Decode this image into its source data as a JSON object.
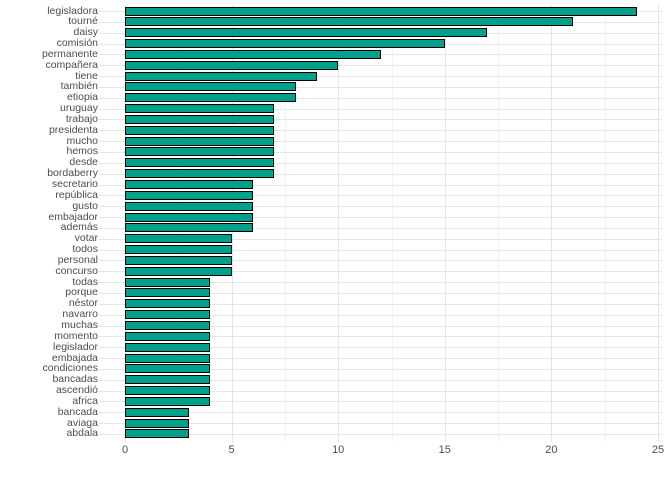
{
  "chart_data": {
    "type": "bar",
    "orientation": "horizontal",
    "title": "",
    "xlabel": "",
    "ylabel": "",
    "categories": [
      "legisladora",
      "tourné",
      "daisy",
      "comisión",
      "permanente",
      "compañera",
      "tiene",
      "también",
      "etiopia",
      "uruguay",
      "trabajo",
      "presidenta",
      "mucho",
      "hemos",
      "desde",
      "bordaberry",
      "secretario",
      "república",
      "gusto",
      "embajador",
      "además",
      "votar",
      "todos",
      "personal",
      "concurso",
      "todas",
      "porque",
      "néstor",
      "navarro",
      "muchas",
      "momento",
      "legislador",
      "embajada",
      "condiciones",
      "bancadas",
      "ascendió",
      "africa",
      "bancada",
      "aviaga",
      "abdala"
    ],
    "values": [
      24,
      21,
      17,
      15,
      12,
      10,
      9,
      8,
      8,
      7,
      7,
      7,
      7,
      7,
      7,
      7,
      6,
      6,
      6,
      6,
      6,
      5,
      5,
      5,
      5,
      4,
      4,
      4,
      4,
      4,
      4,
      4,
      4,
      4,
      4,
      4,
      4,
      3,
      3,
      3
    ],
    "xlim": [
      0,
      25
    ],
    "x_ticks": [
      "0",
      "5",
      "10",
      "15",
      "20",
      "25"
    ],
    "x_tick_values": [
      0,
      5,
      10,
      15,
      20,
      25
    ],
    "x_minor_tick_values": [
      2.5,
      7.5,
      12.5,
      17.5,
      22.5
    ],
    "grid": true,
    "legend_position": "none",
    "colors": {
      "bar_fill": "#00A08A",
      "bar_stroke": "#000000",
      "grid_major": "#E5E5E5",
      "grid_minor": "#F2F2F2",
      "axis_text": "#4D4D4D",
      "background": "#FFFFFF"
    }
  }
}
